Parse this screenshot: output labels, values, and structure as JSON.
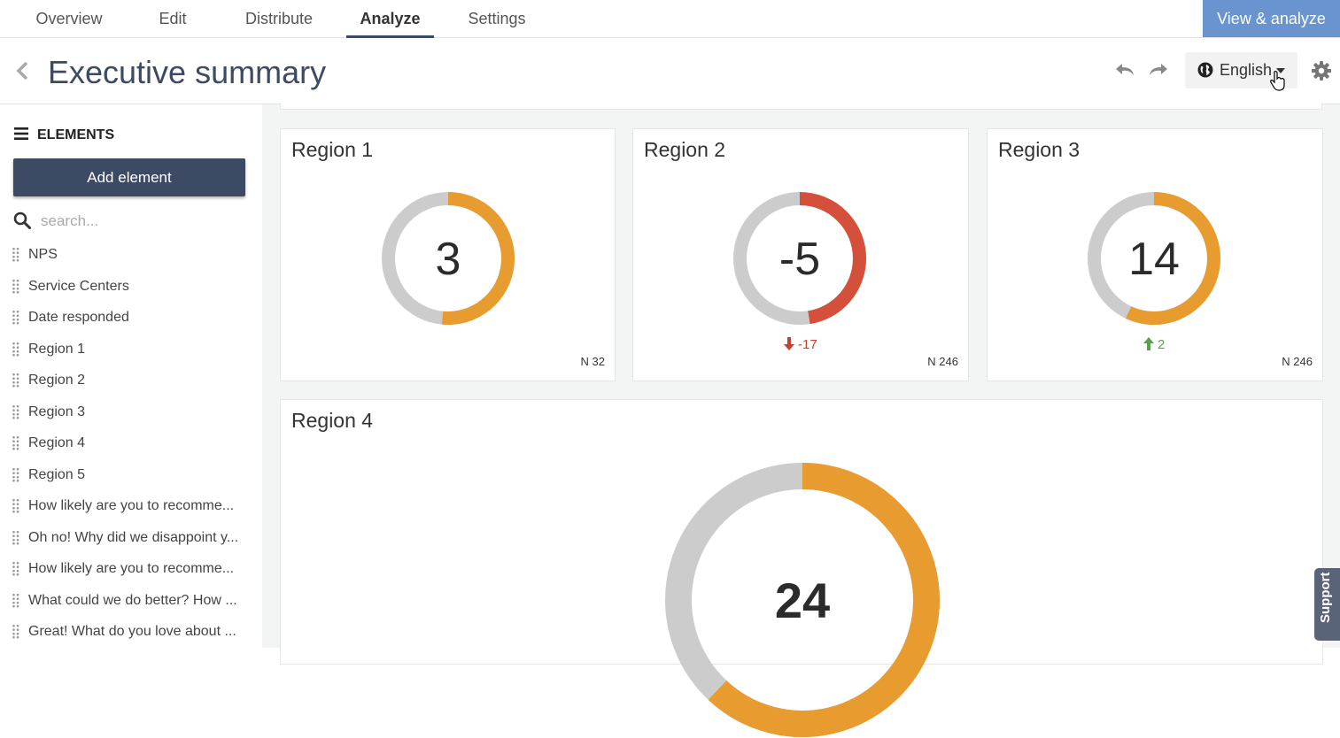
{
  "nav": {
    "tabs": [
      {
        "label": "Overview"
      },
      {
        "label": "Edit"
      },
      {
        "label": "Distribute"
      },
      {
        "label": "Analyze"
      },
      {
        "label": "Settings"
      }
    ],
    "active_tab": "Analyze",
    "view_button": "View & analyze"
  },
  "header": {
    "title": "Executive summary",
    "language": "English",
    "icons": [
      "chevron-left-icon",
      "undo-icon",
      "redo-icon",
      "globe-icon",
      "caret-down-icon",
      "gear-icon"
    ]
  },
  "sidebar": {
    "heading": "ELEMENTS",
    "add_button": "Add element",
    "search_placeholder": "search...",
    "items": [
      "NPS",
      "Service Centers",
      "Date responded",
      "Region 1",
      "Region 2",
      "Region 3",
      "Region 4",
      "Region 5",
      "How likely are you to recomme...",
      "Oh no! Why did we disappoint y...",
      "How likely are you to recomme...",
      "What could we do better? How ...",
      "Great! What do you love about ..."
    ]
  },
  "cards": [
    {
      "title": "Region 1",
      "score": "3",
      "fraction": 0.515,
      "color": "#e89c30",
      "n": "N 32",
      "delta": "",
      "delta_dir": "",
      "delta_color": ""
    },
    {
      "title": "Region 2",
      "score": "-5",
      "fraction": 0.475,
      "color": "#d4503a",
      "n": "N 246",
      "delta": "-17",
      "delta_dir": "down",
      "delta_color": "#c9402e"
    },
    {
      "title": "Region 3",
      "score": "14",
      "fraction": 0.57,
      "color": "#e89c30",
      "n": "N 246",
      "delta": "2",
      "delta_dir": "up",
      "delta_color": "#5aa04f"
    },
    {
      "title": "Region 4",
      "score": "24",
      "fraction": 0.62,
      "color": "#e89c30",
      "n": "",
      "delta": "",
      "delta_dir": "",
      "delta_color": ""
    }
  ],
  "colors": {
    "track": "#cccccc",
    "accent": "#3d4a63",
    "view_button": "#6a94cf"
  },
  "support": "Support"
}
